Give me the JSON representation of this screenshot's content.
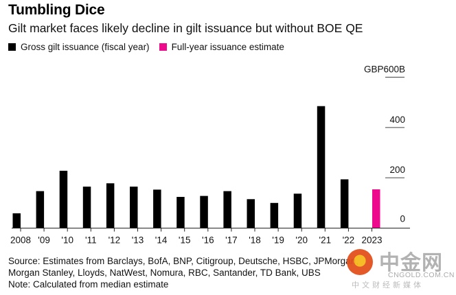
{
  "header": {
    "title": "Tumbling Dice",
    "subtitle": "Gilt market faces likely decline in gilt issuance but without BOE QE"
  },
  "legend": [
    {
      "label": "Gross gilt issuance (fiscal year)",
      "color": "#000000"
    },
    {
      "label": "Full-year issuance estimate",
      "color": "#ee0a8c"
    }
  ],
  "chart_data": {
    "type": "bar",
    "title": "Tumbling Dice",
    "subtitle": "Gilt market faces likely decline in gilt issuance but without BOE QE",
    "xlabel": "",
    "ylabel": "",
    "unit_label": "GBP600B",
    "categories": [
      "2008",
      "'09",
      "'10",
      "'11",
      "'12",
      "'13",
      "'14",
      "'15",
      "'16",
      "'17",
      "'18",
      "'19",
      "'20",
      "'21",
      "'22",
      "2023"
    ],
    "series": [
      {
        "name": "Gross gilt issuance (fiscal year)",
        "color": "#000000",
        "values": [
          59,
          147,
          228,
          165,
          178,
          165,
          153,
          124,
          128,
          147,
          115,
          100,
          137,
          485,
          194,
          null
        ]
      },
      {
        "name": "Full-year issuance estimate",
        "color": "#ee0a8c",
        "values": [
          null,
          null,
          null,
          null,
          null,
          null,
          null,
          null,
          null,
          null,
          null,
          null,
          null,
          null,
          null,
          154
        ]
      }
    ],
    "ylim": [
      0,
      600
    ],
    "yticks": [
      0,
      200,
      400,
      600
    ],
    "ytick_labels": [
      "0",
      "200",
      "400",
      "GBP600B"
    ],
    "y_axis_side": "right",
    "grid": false,
    "legend_position": "top-left"
  },
  "footer": {
    "source": "Source: Estimates from Barclays, BofA, BNP, Citigroup, Deutsche, HSBC, JPMorgan,",
    "source_line2": "Morgan Stanley, Lloyds, NatWest, Nomura, RBC, Santander, TD Bank, UBS",
    "note": "Note: Calculated from median estimate"
  },
  "watermark": {
    "name_cn": "中金网",
    "url": "CNGOLD.COM.CN",
    "tagline": "中文财经新媒体"
  }
}
